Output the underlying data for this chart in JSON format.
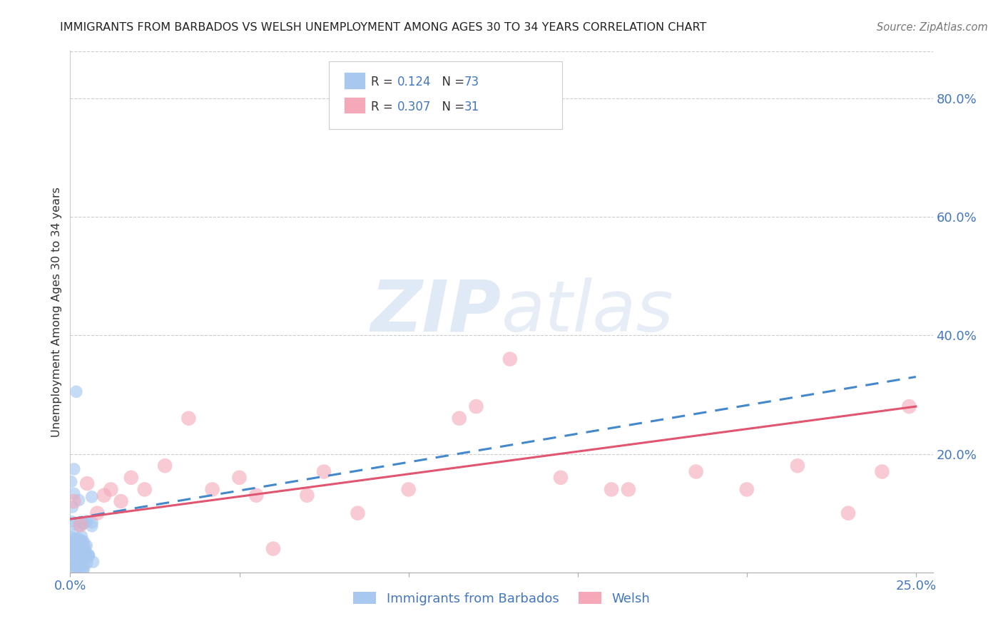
{
  "title": "IMMIGRANTS FROM BARBADOS VS WELSH UNEMPLOYMENT AMONG AGES 30 TO 34 YEARS CORRELATION CHART",
  "source": "Source: ZipAtlas.com",
  "ylabel": "Unemployment Among Ages 30 to 34 years",
  "xlim": [
    0.0,
    0.255
  ],
  "ylim": [
    0.0,
    0.88
  ],
  "barbados_color": "#a8c8f0",
  "welsh_color": "#f4a8b8",
  "barbados_line_color": "#4488cc",
  "welsh_line_color": "#e05570",
  "watermark_zip": "ZIP",
  "watermark_atlas": "atlas",
  "barbados_R": 0.124,
  "barbados_N": 73,
  "welsh_R": 0.307,
  "welsh_N": 31,
  "legend_text_color": "#4477bb",
  "legend_label_color": "#222222"
}
